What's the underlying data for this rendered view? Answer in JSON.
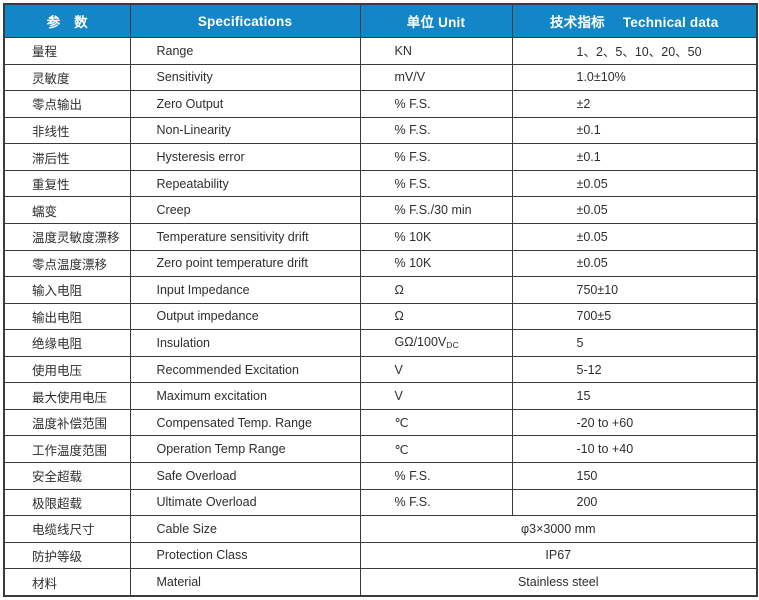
{
  "table": {
    "header": {
      "col1": "参　数",
      "col2": "Specifications",
      "col3": "单位 Unit",
      "col4_cn": "技术指标",
      "col4_en": "Technical data"
    },
    "header_bg_color": "#1286c6",
    "border_color": "#3b3b3b",
    "rows": [
      {
        "cn": "量程",
        "en": "Range",
        "unit": "KN",
        "value": "1、2、5、10、20、50",
        "merged": false
      },
      {
        "cn": "灵敏度",
        "en": "Sensitivity",
        "unit": "mV/V",
        "value": "1.0±10%",
        "merged": false
      },
      {
        "cn": "零点输出",
        "en": "Zero Output",
        "unit": "% F.S.",
        "value": "±2",
        "merged": false
      },
      {
        "cn": "非线性",
        "en": "Non-Linearity",
        "unit": "% F.S.",
        "value": "±0.1",
        "merged": false
      },
      {
        "cn": "滞后性",
        "en": "Hysteresis error",
        "unit": "% F.S.",
        "value": "±0.1",
        "merged": false
      },
      {
        "cn": "重复性",
        "en": "Repeatability",
        "unit": "% F.S.",
        "value": "±0.05",
        "merged": false
      },
      {
        "cn": "蠕变",
        "en": "Creep",
        "unit": "% F.S./30 min",
        "value": "±0.05",
        "merged": false
      },
      {
        "cn": "温度灵敏度漂移",
        "en": "Temperature sensitivity drift",
        "unit": "% 10K",
        "value": "±0.05",
        "merged": false
      },
      {
        "cn": "零点温度漂移",
        "en": "Zero point temperature drift",
        "unit": "% 10K",
        "value": "±0.05",
        "merged": false
      },
      {
        "cn": "输入电阻",
        "en": "Input Impedance",
        "unit": "Ω",
        "value": "750±10",
        "merged": false
      },
      {
        "cn": "输出电阻",
        "en": "Output impedance",
        "unit": "Ω",
        "value": "700±5",
        "merged": false
      },
      {
        "cn": "绝缘电阻",
        "en": "Insulation",
        "unit": "GΩ/100V",
        "unit_sub": "DC",
        "value": "5",
        "merged": false
      },
      {
        "cn": "使用电压",
        "en": "Recommended Excitation",
        "unit": "V",
        "value": "5-12",
        "merged": false
      },
      {
        "cn": "最大使用电压",
        "en": "Maximum excitation",
        "unit": "V",
        "value": "15",
        "merged": false
      },
      {
        "cn": "温度补偿范围",
        "en": "Compensated Temp. Range",
        "unit": "℃",
        "value": "-20 to +60",
        "merged": false
      },
      {
        "cn": "工作温度范围",
        "en": "Operation Temp Range",
        "unit": "℃",
        "value": "-10 to +40",
        "merged": false
      },
      {
        "cn": "安全超载",
        "en": "Safe Overload",
        "unit": "% F.S.",
        "value": "150",
        "merged": false
      },
      {
        "cn": "极限超载",
        "en": "Ultimate Overload",
        "unit": "% F.S.",
        "value": "200",
        "merged": false
      },
      {
        "cn": "电缆线尺寸",
        "en": "Cable Size",
        "unit": "",
        "value": "φ3×3000 mm",
        "merged": true
      },
      {
        "cn": "防护等级",
        "en": "Protection Class",
        "unit": "",
        "value": "IP67",
        "merged": true
      },
      {
        "cn": "材料",
        "en": "Material",
        "unit": "",
        "value": "Stainless steel",
        "merged": true
      }
    ]
  }
}
